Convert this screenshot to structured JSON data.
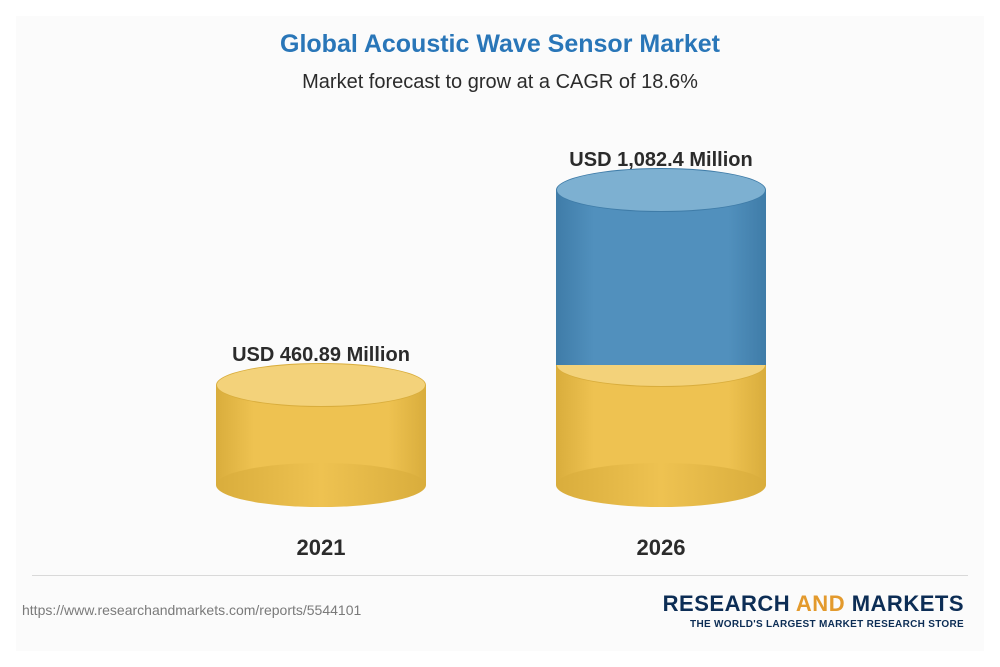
{
  "title": "Global Acoustic Wave Sensor Market",
  "subtitle": "Market forecast to grow at a CAGR of 18.6%",
  "chart": {
    "type": "cylinder-bar",
    "background_color": "#fbfbfb",
    "label_fontsize": 20,
    "year_fontsize": 22,
    "text_color": "#2b2b2b",
    "title_color": "#2976b8",
    "cylinder_width": 210,
    "ellipse_height": 44,
    "bars": [
      {
        "year": "2021",
        "label": "USD 460.89 Million",
        "value": 460.89,
        "segments": [
          {
            "height": 100,
            "side_color": "#eec251",
            "side_shadow": "#d9ad3c",
            "top_color": "#f3d27a"
          }
        ]
      },
      {
        "year": "2026",
        "label": "USD 1,082.4 Million",
        "value": 1082.4,
        "segments": [
          {
            "height": 120,
            "side_color": "#eec251",
            "side_shadow": "#d9ad3c",
            "top_color": "#f3d27a"
          },
          {
            "height": 175,
            "side_color": "#5190bd",
            "side_shadow": "#3f7ca8",
            "top_color": "#7db0d1"
          }
        ]
      }
    ]
  },
  "footer": {
    "url": "https://www.researchandmarkets.com/reports/5544101",
    "divider_color": "#d9d9d9",
    "logo": {
      "word1": "RESEARCH",
      "word2": "AND",
      "word3": "MARKETS",
      "tagline": "THE WORLD'S LARGEST MARKET RESEARCH STORE",
      "primary_color": "#0c2d55",
      "accent_color": "#e39a2d"
    }
  }
}
